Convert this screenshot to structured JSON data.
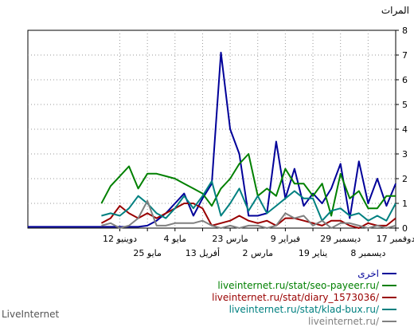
{
  "chart_data": {
    "type": "line",
    "ylabel": "المرات",
    "ylim": [
      0,
      8
    ],
    "yticks": [
      0,
      1,
      2,
      3,
      4,
      5,
      6,
      7,
      8
    ],
    "grid": true,
    "x_order": "right-to-left",
    "x_count": 41,
    "x_tick_labels_upper": [
      {
        "index": 0,
        "label": "17 دوفمبر"
      },
      {
        "index": 6,
        "label": "29 ديسمبر"
      },
      {
        "index": 12,
        "label": "9 فبراير"
      },
      {
        "index": 18,
        "label": "23 مارس"
      },
      {
        "index": 24,
        "label": "4 مايو"
      },
      {
        "index": 30,
        "label": "12 دوينيو"
      }
    ],
    "x_tick_labels_lower": [
      {
        "index": 3,
        "label": "8 ديسمبر"
      },
      {
        "index": 9,
        "label": "19 يناير"
      },
      {
        "index": 15,
        "label": "2 مارس"
      },
      {
        "index": 21,
        "label": "13 أفريل"
      },
      {
        "index": 27,
        "label": "25 مايو"
      }
    ],
    "series": [
      {
        "name": "اخرى",
        "color": "#000099",
        "values": [
          1.8,
          0.9,
          2.0,
          1.0,
          2.7,
          0.4,
          2.6,
          1.6,
          1.0,
          1.4,
          0.9,
          2.4,
          1.2,
          3.5,
          0.6,
          0.5,
          0.5,
          3.0,
          4.0,
          7.1,
          1.8,
          1.2,
          0.5,
          1.4,
          1.0,
          0.6,
          0.3,
          0.1,
          0.05,
          0.05,
          0.05,
          0.05,
          0.05,
          0.05,
          0.05,
          0.05,
          0.05,
          0.05,
          0.05,
          0.05,
          0.05
        ]
      },
      {
        "name": "liveinternet.ru/stat/seo-payeer.ru/",
        "color": "#008000",
        "values": [
          1.3,
          1.3,
          0.8,
          0.8,
          1.5,
          1.2,
          2.2,
          0.5,
          1.8,
          1.3,
          1.8,
          1.8,
          2.4,
          1.3,
          1.6,
          1.3,
          3.0,
          2.6,
          2.0,
          1.6,
          0.9,
          1.4,
          1.6,
          1.8,
          2.0,
          2.1,
          2.2,
          2.2,
          1.6,
          2.5,
          2.1,
          1.7,
          1.0
        ]
      },
      {
        "name": "liveinternet.ru/stat/diary_1573036/",
        "color": "#990000",
        "values": [
          0.4,
          0.1,
          0.1,
          0.2,
          0.0,
          0.1,
          0.3,
          0.3,
          0.1,
          0.2,
          0.3,
          0.4,
          0.4,
          0.1,
          0.3,
          0.2,
          0.3,
          0.5,
          0.3,
          0.2,
          0.1,
          0.8,
          1.0,
          1.0,
          0.8,
          0.6,
          0.4,
          0.6,
          0.4,
          0.6,
          0.9,
          0.4,
          0.2
        ]
      },
      {
        "name": "liveinternet.ru/stat/klad-bux.ru/",
        "color": "#008080",
        "values": [
          1.0,
          0.3,
          0.5,
          0.3,
          0.6,
          0.5,
          0.8,
          0.7,
          0.3,
          1.2,
          1.2,
          1.5,
          1.2,
          0.9,
          0.6,
          1.3,
          0.7,
          1.6,
          1.0,
          0.5,
          1.9,
          1.3,
          0.8,
          1.3,
          0.8,
          0.4,
          0.6,
          1.0,
          1.3,
          0.8,
          0.5,
          0.6,
          0.5
        ]
      },
      {
        "name": "liveinternet.ru/",
        "color": "#808080",
        "values": [
          0.1,
          0.0,
          0.1,
          0.0,
          0.1,
          0.2,
          0.2,
          0.0,
          0.3,
          0.1,
          0.5,
          0.4,
          0.6,
          0.1,
          0.0,
          0.1,
          0.1,
          0.0,
          0.1,
          0.0,
          0.1,
          0.3,
          0.2,
          0.2,
          0.2,
          0.1,
          0.1,
          1.1,
          0.4,
          0.1,
          0.0,
          0.2,
          0.1
        ]
      }
    ]
  },
  "footer": {
    "brand": "LiveInternet"
  }
}
